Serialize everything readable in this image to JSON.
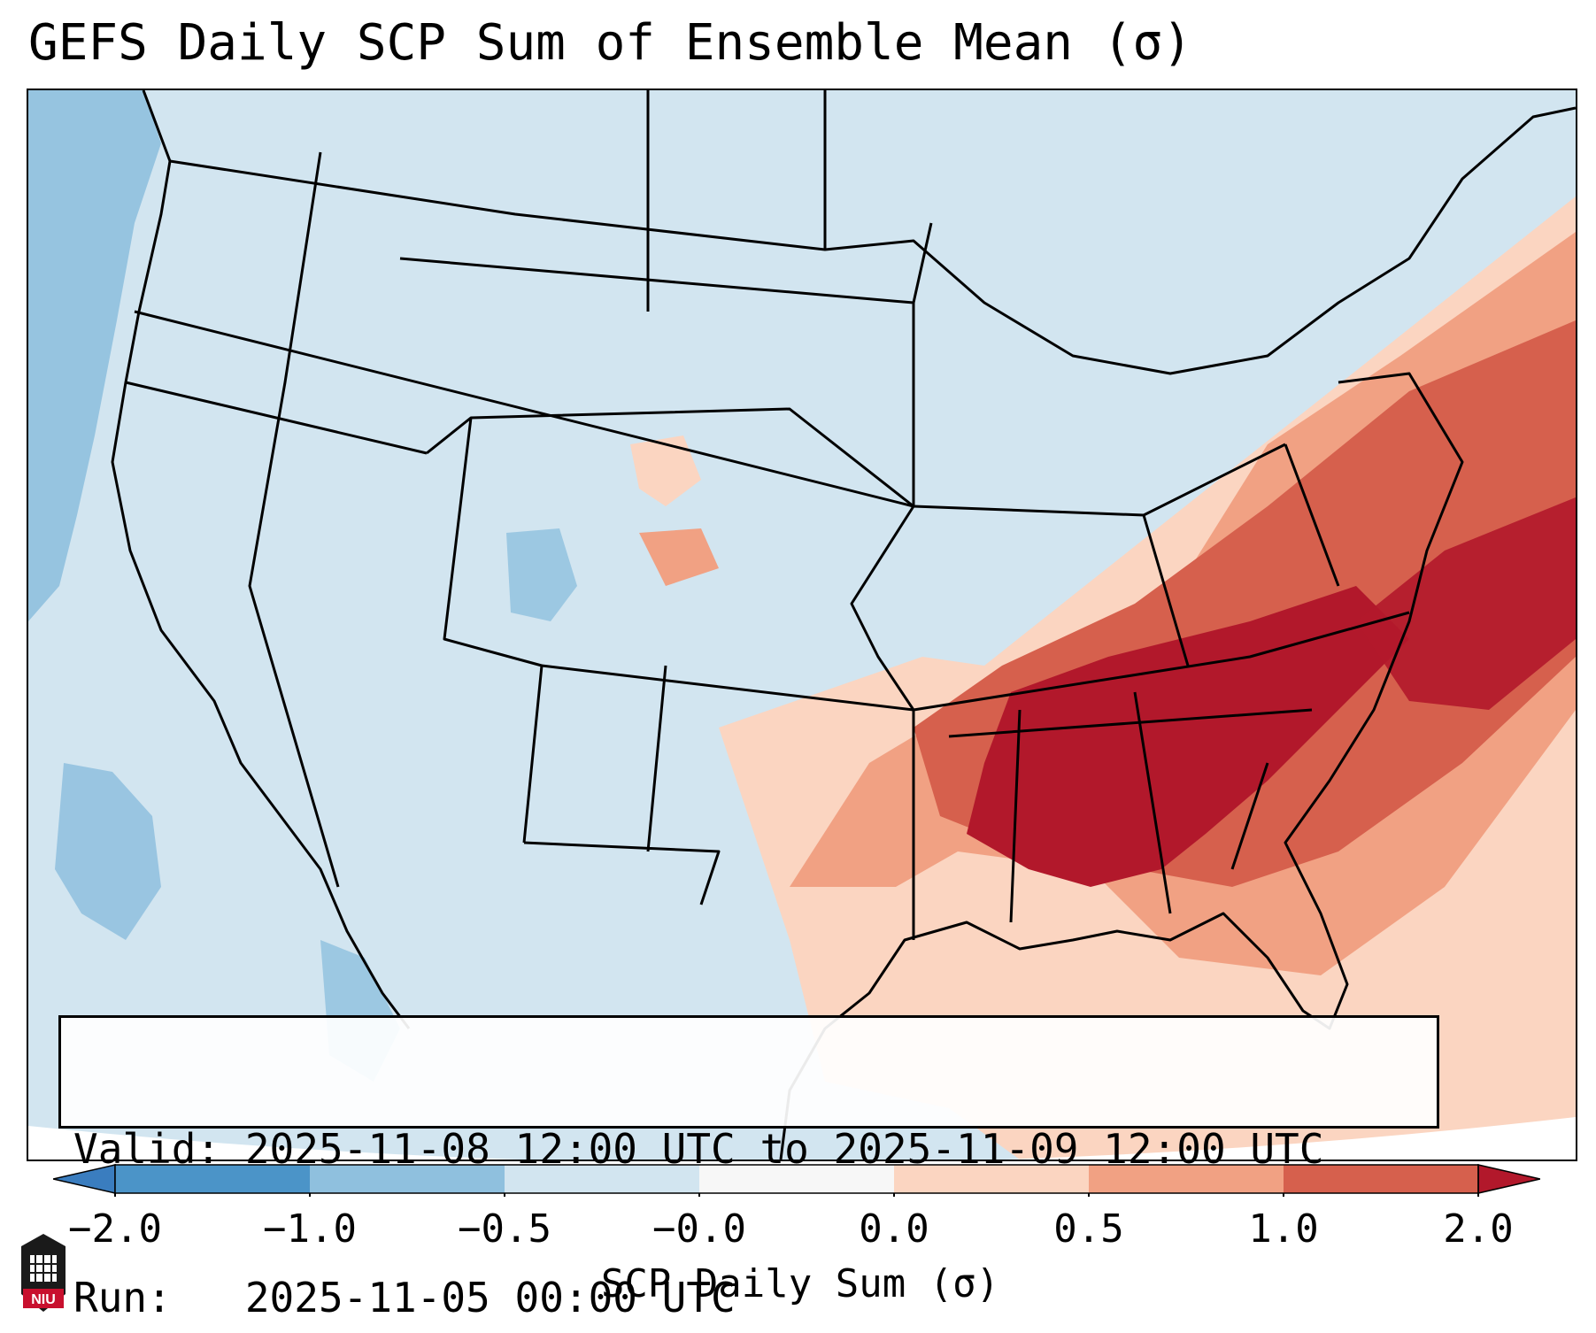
{
  "title": "GEFS Daily SCP Sum of Ensemble Mean (σ)",
  "info": {
    "valid_line": "Valid: 2025-11-08 12:00 UTC to 2025-11-09 12:00 UTC",
    "run_line": "Run:   2025-11-05 00:00 UTC"
  },
  "colorbar": {
    "label": "SCP Daily Sum (σ)",
    "ticks": [
      "−2.0",
      "−1.0",
      "−0.5",
      "−0.0",
      "0.0",
      "0.5",
      "1.0",
      "2.0"
    ],
    "bins": [
      {
        "range": "< -2.0",
        "color": "#3a7dbf"
      },
      {
        "range": "-2.0 to -1.0",
        "color": "#4b94c8"
      },
      {
        "range": "-1.0 to -0.5",
        "color": "#8fc0de"
      },
      {
        "range": "-0.5 to -0.0",
        "color": "#d2e5f0"
      },
      {
        "range": "-0.0 to 0.0",
        "color": "#f7f7f7"
      },
      {
        "range": "0.0 to 0.5",
        "color": "#fbd5c1"
      },
      {
        "range": "0.5 to 1.0",
        "color": "#f1a183"
      },
      {
        "range": "1.0 to 2.0",
        "color": "#d6604d"
      },
      {
        "range": "> 2.0",
        "color": "#b2182b"
      }
    ]
  },
  "map": {
    "projection": "Lambert conformal, CONUS",
    "field": "SCP daily sum (σ)",
    "highlights": [
      "Strong positive anomaly (>2σ) over Southeast US: Mississippi, Alabama, Georgia, South Carolina, North Carolina, Tennessee",
      "Moderate positive anomaly along East Coast to New England and western Atlantic",
      "Weak positive anomaly across Gulf of Mexico and central Plains (Kansas/Nebraska)",
      "Negative anomalies off the Pacific Northwest coast and over the Caribbean"
    ]
  },
  "logo": {
    "text": "NIU",
    "icon": "niu-logo-icon"
  }
}
